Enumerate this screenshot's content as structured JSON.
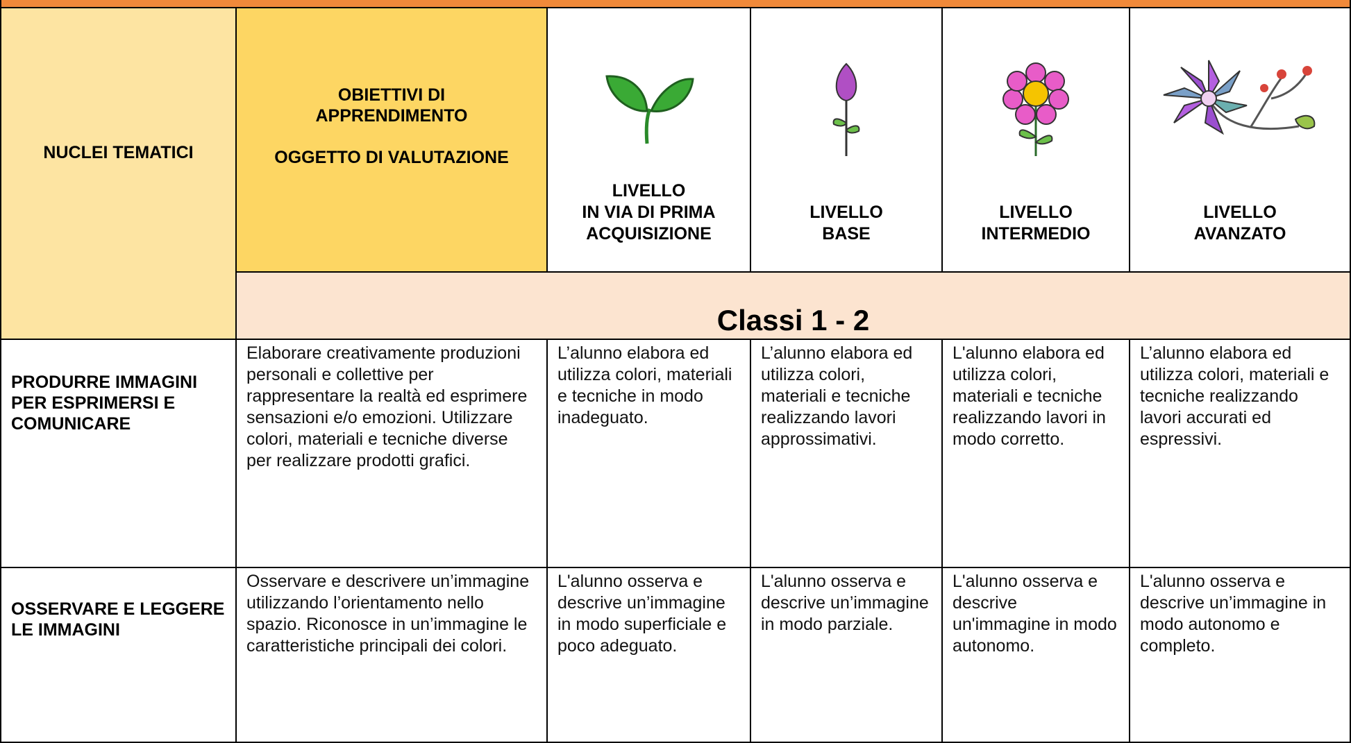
{
  "header": {
    "nuclei": "NUCLEI TEMATICI",
    "objectives_title": "OBIETTIVI DI APPRENDIMENTO",
    "objectives_subtitle": "OGGETTO DI VALUTAZIONE",
    "levels": [
      {
        "label": "LIVELLO",
        "name": "IN VIA DI PRIMA ACQUISIZIONE"
      },
      {
        "label": "LIVELLO",
        "name": "BASE"
      },
      {
        "label": "LIVELLO",
        "name": "INTERMEDIO"
      },
      {
        "label": "LIVELLO",
        "name": "AVANZATO"
      }
    ],
    "classes": "Classi 1 - 2"
  },
  "rows": [
    {
      "nucleus": "PRODURRE IMMAGINI PER ESPRIMERSI E COMUNICARE",
      "objective": "Elaborare creativamente produzioni personali e collettive per rappresentare la realtà ed esprimere sensazioni e/o emozioni. Utilizzare colori, materiali e tecniche diverse  per realizzare prodotti grafici.",
      "levels": [
        "L’alunno elabora ed utilizza colori, materiali e tecniche in modo inadeguato.",
        "L’alunno elabora ed utilizza colori, materiali e tecniche realizzando lavori approssimativi.",
        "L'alunno elabora ed utilizza colori, materiali e tecniche realizzando lavori  in modo corretto.",
        "L’alunno elabora ed utilizza colori, materiali e tecniche realizzando  lavori accurati ed espressivi."
      ]
    },
    {
      "nucleus": "OSSERVARE E LEGGERE LE IMMAGINI",
      "objective": "Osservare e descrivere un’immagine utilizzando l’orientamento nello spazio. Riconosce in un’immagine le caratteristiche principali dei colori.",
      "levels": [
        "L'alunno osserva e descrive un’immagine in modo superficiale e poco adeguato.",
        "L'alunno osserva e descrive un’immagine in modo parziale.",
        "L'alunno osserva e descrive un'immagine in modo autonomo.",
        "L'alunno osserva e descrive un’immagine in modo autonomo e completo."
      ]
    }
  ]
}
